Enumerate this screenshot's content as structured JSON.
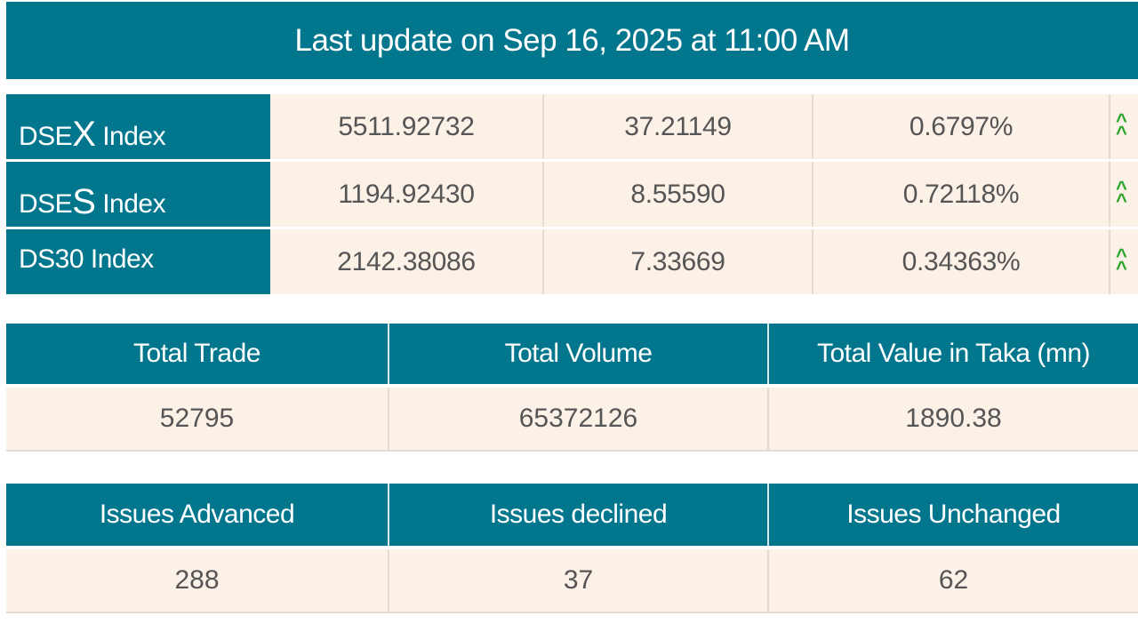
{
  "header": {
    "title": "Last update on Sep 16, 2025 at 11:00 AM"
  },
  "indices": [
    {
      "prefix": "DSE",
      "big_letter": "X",
      "suffix": " Index",
      "value": "5511.92732",
      "change": "37.21149",
      "percent": "0.6797%",
      "trend_icon": "double-chevron-up-icon"
    },
    {
      "prefix": "DSE",
      "big_letter": "S",
      "suffix": " Index",
      "value": "1194.92430",
      "change": "8.55590",
      "percent": "0.72118%",
      "trend_icon": "double-chevron-up-icon"
    },
    {
      "label": "DS30 Index",
      "value": "2142.38086",
      "change": "7.33669",
      "percent": "0.34363%",
      "trend_icon": "double-chevron-up-icon"
    }
  ],
  "trade_stats": {
    "headers": [
      "Total Trade",
      "Total Volume",
      "Total Value in Taka (mn)"
    ],
    "values": [
      "52795",
      "65372126",
      "1890.38"
    ]
  },
  "issue_stats": {
    "headers": [
      "Issues Advanced",
      "Issues declined",
      "Issues Unchanged"
    ],
    "values": [
      "288",
      "37",
      "62"
    ]
  },
  "colors": {
    "header_bg": "#02768d",
    "cell_bg": "#fbf1e7",
    "up_arrow": "#2aa52a"
  }
}
